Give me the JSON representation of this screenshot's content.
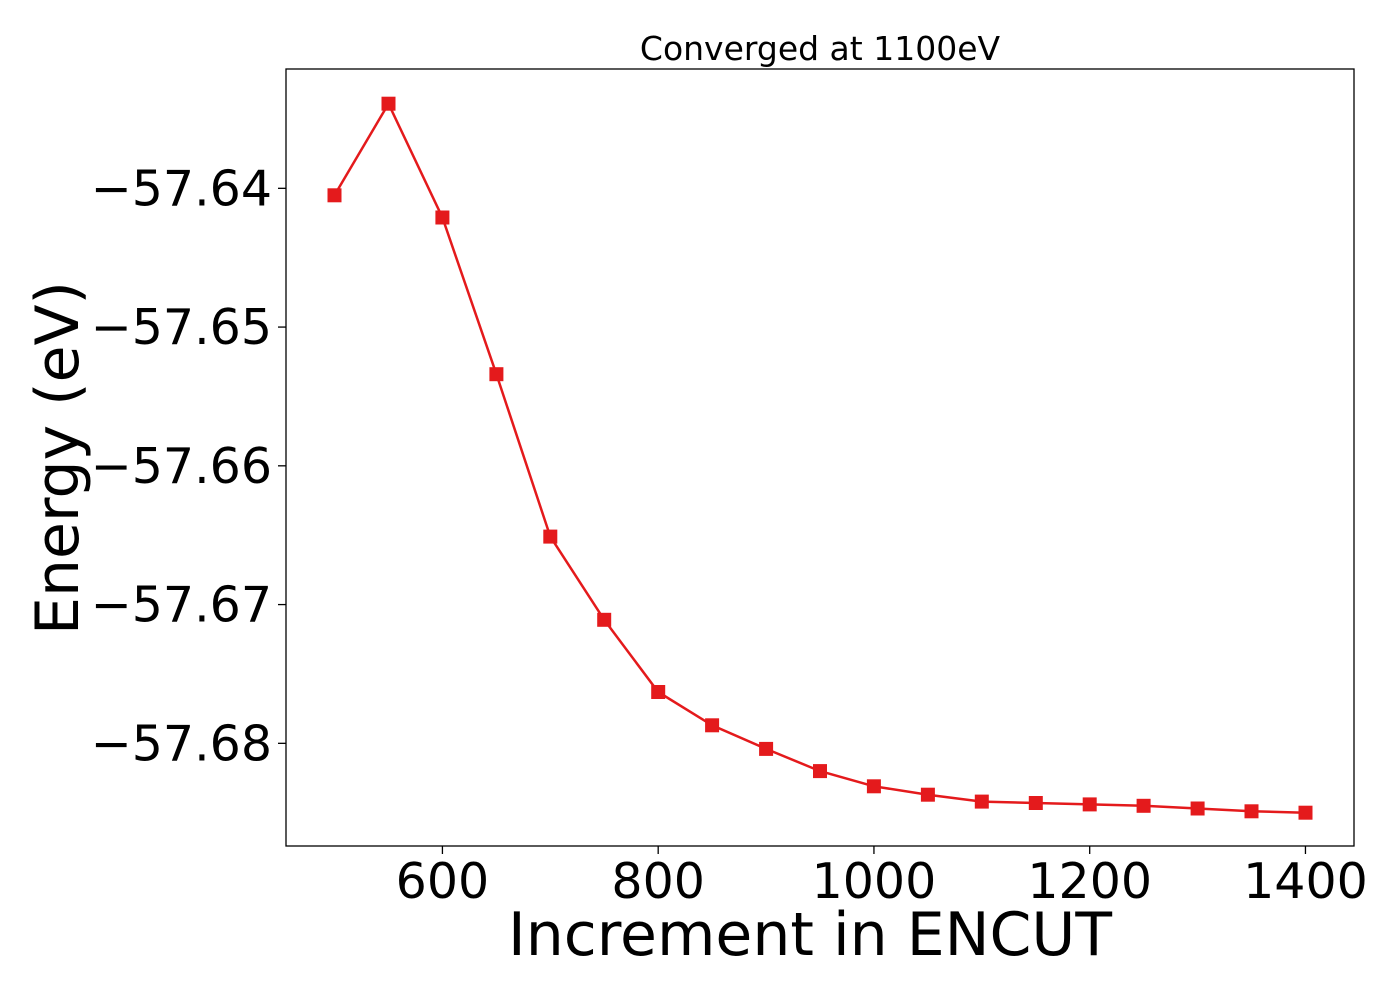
{
  "chart_data": {
    "type": "line",
    "title": "Converged at 1100eV",
    "xlabel": "Increment in ENCUT",
    "ylabel": "Energy (eV)",
    "xlim": [
      455,
      1445
    ],
    "ylim": [
      -57.6874,
      -57.6314
    ],
    "x_ticks": [
      600,
      800,
      1000,
      1200,
      1400
    ],
    "y_ticks": [
      -57.64,
      -57.65,
      -57.66,
      -57.67,
      -57.68
    ],
    "y_tick_labels": [
      "−57.64",
      "−57.65",
      "−57.66",
      "−57.67",
      "−57.68"
    ],
    "grid": false,
    "legend": false,
    "series": [
      {
        "color": "#e41a1c",
        "marker": "square",
        "x": [
          500,
          550,
          600,
          650,
          700,
          750,
          800,
          850,
          900,
          950,
          1000,
          1050,
          1100,
          1150,
          1200,
          1250,
          1300,
          1350,
          1400
        ],
        "y": [
          -57.6405,
          -57.6339,
          -57.6421,
          -57.6534,
          -57.6651,
          -57.6711,
          -57.6763,
          -57.6787,
          -57.6804,
          -57.682,
          -57.6831,
          -57.6837,
          -57.6842,
          -57.6843,
          -57.6844,
          -57.6845,
          -57.6847,
          -57.6849,
          -57.685
        ]
      }
    ]
  }
}
